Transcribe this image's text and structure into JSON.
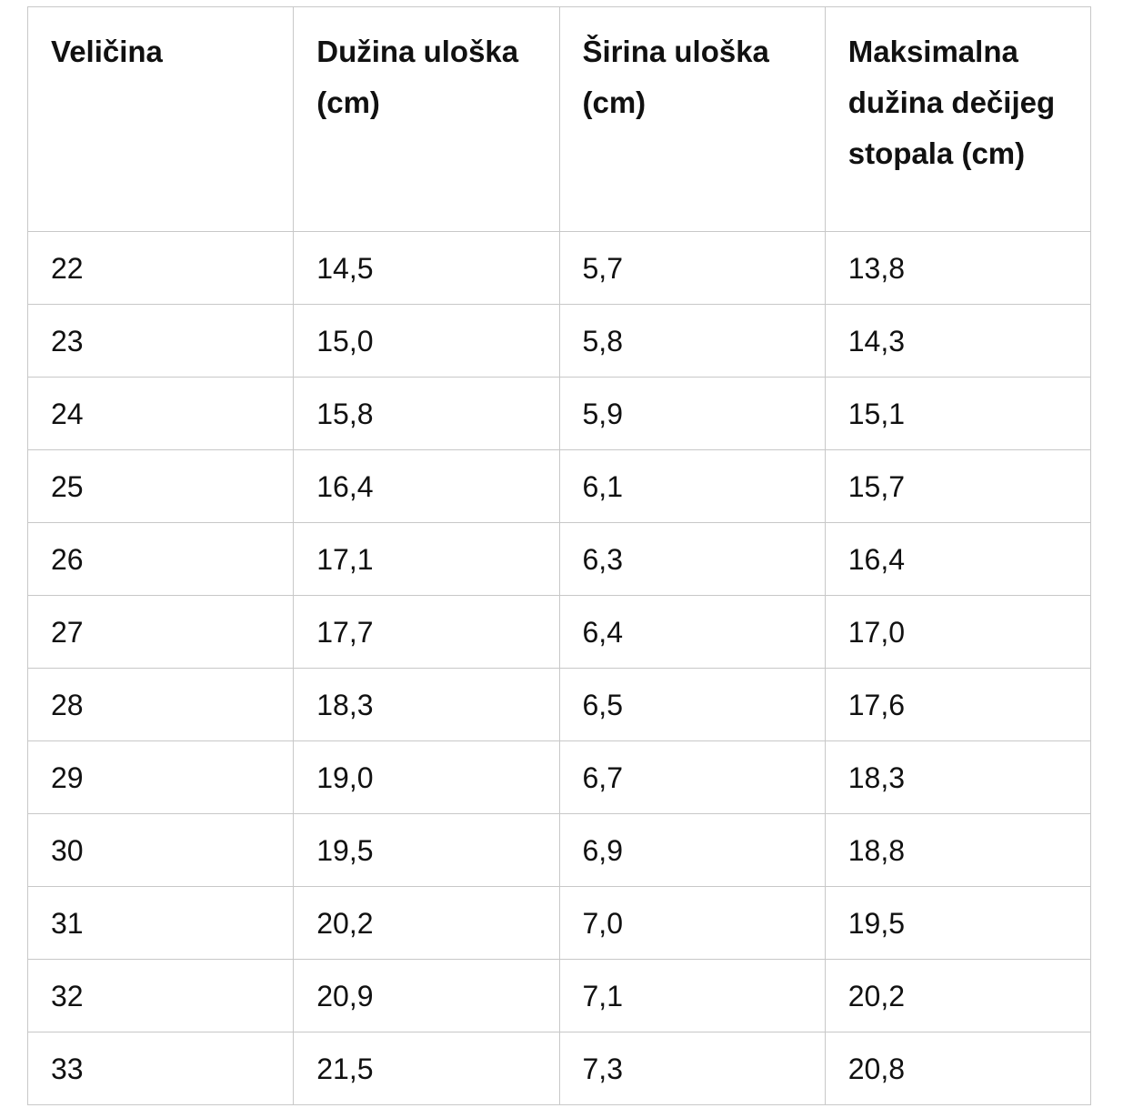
{
  "table": {
    "header": [
      "Veličina",
      "Dužina uloška (cm)",
      "Širina uloška (cm)",
      "Maksimalna dužina dečijeg stopala (cm)"
    ],
    "rows": [
      [
        "22",
        "14,5",
        "5,7",
        "13,8"
      ],
      [
        "23",
        "15,0",
        "5,8",
        "14,3"
      ],
      [
        "24",
        "15,8",
        "5,9",
        "15,1"
      ],
      [
        "25",
        "16,4",
        "6,1",
        "15,7"
      ],
      [
        "26",
        "17,1",
        "6,3",
        "16,4"
      ],
      [
        "27",
        "17,7",
        "6,4",
        "17,0"
      ],
      [
        "28",
        "18,3",
        "6,5",
        "17,6"
      ],
      [
        "29",
        "19,0",
        "6,7",
        "18,3"
      ],
      [
        "30",
        "19,5",
        "6,9",
        "18,8"
      ],
      [
        "31",
        "20,2",
        "7,0",
        "19,5"
      ],
      [
        "32",
        "20,9",
        "7,1",
        "20,2"
      ],
      [
        "33",
        "21,5",
        "7,3",
        "20,8"
      ]
    ]
  }
}
